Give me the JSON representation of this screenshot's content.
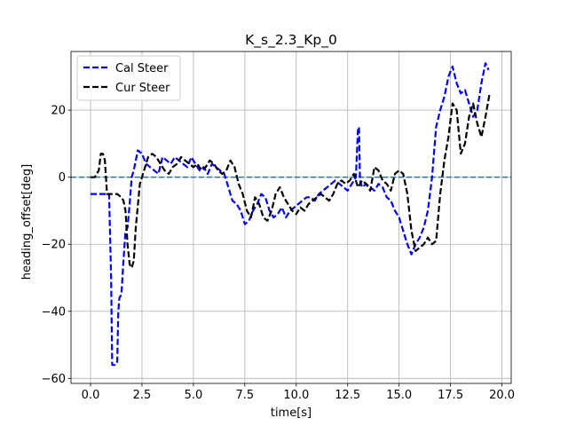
{
  "chart_data": {
    "type": "line",
    "title": "K_s_2.3_Kp_0",
    "xlabel": "time[s]",
    "ylabel": "heading_offset[deg]",
    "xlim": [
      -0.95,
      20.45
    ],
    "ylim": [
      -61.5,
      37.5
    ],
    "xticks": [
      0.0,
      2.5,
      5.0,
      7.5,
      10.0,
      12.5,
      15.0,
      17.5,
      20.0
    ],
    "xtick_labels": [
      "0.0",
      "2.5",
      "5.0",
      "7.5",
      "10.0",
      "12.5",
      "15.0",
      "17.5",
      "20.0"
    ],
    "yticks": [
      -60,
      -40,
      -20,
      0,
      20
    ],
    "ytick_labels": [
      "−60",
      "−40",
      "−20",
      "0",
      "20"
    ],
    "grid": true,
    "legend_position": "top-left",
    "reference_line": {
      "y": 0,
      "color": "#1f77b4",
      "style": "dashed"
    },
    "series": [
      {
        "name": "Cal Steer",
        "color": "#0000ff",
        "style": "dashed",
        "x": [
          0.0,
          0.5,
          0.9,
          1.0,
          1.05,
          1.1,
          1.2,
          1.3,
          1.35,
          1.4,
          1.5,
          1.6,
          1.7,
          1.8,
          1.9,
          2.0,
          2.1,
          2.3,
          2.5,
          2.7,
          2.9,
          3.1,
          3.3,
          3.5,
          3.7,
          3.9,
          4.1,
          4.3,
          4.5,
          4.7,
          4.9,
          5.1,
          5.3,
          5.5,
          5.7,
          5.9,
          6.1,
          6.3,
          6.5,
          6.7,
          6.9,
          7.1,
          7.3,
          7.5,
          7.7,
          7.9,
          8.1,
          8.3,
          8.5,
          8.7,
          8.9,
          9.1,
          9.3,
          9.5,
          9.7,
          9.9,
          10.1,
          10.3,
          10.5,
          10.7,
          10.9,
          11.1,
          11.3,
          11.5,
          11.7,
          11.9,
          12.1,
          12.3,
          12.5,
          12.7,
          12.9,
          13.0,
          13.05,
          13.1,
          13.2,
          13.4,
          13.6,
          13.8,
          14.0,
          14.2,
          14.4,
          14.6,
          14.8,
          15.0,
          15.2,
          15.4,
          15.6,
          15.8,
          16.0,
          16.2,
          16.4,
          16.6,
          16.8,
          17.0,
          17.2,
          17.4,
          17.6,
          17.8,
          18.0,
          18.2,
          18.4,
          18.6,
          18.8,
          19.0,
          19.2,
          19.35
        ],
        "y": [
          -5,
          -5,
          -5,
          -30,
          -56,
          -56,
          -56,
          -55,
          -40,
          -36,
          -35,
          -25,
          -16,
          -15,
          -8,
          0,
          2,
          8,
          7,
          4,
          3,
          2,
          1,
          6,
          5,
          4,
          6,
          5,
          4,
          3,
          6,
          4,
          2,
          3,
          1,
          4,
          3,
          2,
          1,
          -3,
          -7,
          -8,
          -10,
          -14,
          -13,
          -10,
          -8,
          -5,
          -6,
          -10,
          -12,
          -11,
          -9,
          -12,
          -10,
          -9,
          -8,
          -7,
          -6,
          -6,
          -7,
          -5,
          -4,
          -3,
          -2,
          -1,
          -2,
          -3,
          -4,
          -2,
          0,
          14,
          15,
          -1,
          -3,
          -2,
          -3,
          -4,
          -2,
          -3,
          -6,
          -7,
          -10,
          -12,
          -16,
          -20,
          -23,
          -20,
          -18,
          -15,
          -10,
          0,
          15,
          20,
          24,
          30,
          33,
          28,
          25,
          26,
          22,
          18,
          20,
          28,
          34,
          32
        ]
      },
      {
        "name": "Cur Steer",
        "color": "#000000",
        "style": "dashed",
        "x": [
          0.0,
          0.2,
          0.4,
          0.5,
          0.6,
          0.7,
          0.8,
          0.9,
          1.0,
          1.1,
          1.2,
          1.3,
          1.5,
          1.6,
          1.7,
          1.8,
          1.9,
          2.0,
          2.1,
          2.2,
          2.4,
          2.6,
          2.8,
          3.0,
          3.2,
          3.4,
          3.6,
          3.8,
          4.0,
          4.2,
          4.4,
          4.6,
          4.8,
          5.0,
          5.2,
          5.4,
          5.6,
          5.8,
          6.0,
          6.2,
          6.4,
          6.6,
          6.8,
          7.0,
          7.2,
          7.4,
          7.6,
          7.8,
          8.0,
          8.2,
          8.4,
          8.6,
          8.8,
          9.0,
          9.2,
          9.4,
          9.6,
          9.8,
          10.0,
          10.2,
          10.4,
          10.6,
          10.8,
          11.0,
          11.2,
          11.4,
          11.6,
          11.8,
          12.0,
          12.2,
          12.4,
          12.6,
          12.8,
          13.0,
          13.2,
          13.4,
          13.6,
          13.8,
          14.0,
          14.2,
          14.4,
          14.6,
          14.8,
          15.0,
          15.2,
          15.4,
          15.6,
          15.8,
          16.0,
          16.2,
          16.4,
          16.6,
          16.8,
          17.0,
          17.2,
          17.4,
          17.6,
          17.8,
          18.0,
          18.2,
          18.4,
          18.6,
          18.8,
          19.0,
          19.2,
          19.4
        ],
        "y": [
          0,
          0,
          2,
          7,
          7,
          5,
          -5,
          -5,
          -5,
          -5,
          -5,
          -5,
          -6,
          -7,
          -10,
          -20,
          -26,
          -27,
          -25,
          -15,
          -2,
          2,
          6,
          7,
          6,
          4,
          2,
          1,
          3,
          4,
          6,
          5,
          4,
          3,
          4,
          2,
          3,
          5,
          4,
          2,
          1,
          2,
          5,
          3,
          -2,
          -5,
          -10,
          -12,
          -6,
          -8,
          -12,
          -13,
          -10,
          -5,
          -3,
          -6,
          -8,
          -10,
          -11,
          -9,
          -10,
          -8,
          -7,
          -6,
          -5,
          -6,
          -7,
          -5,
          -2,
          -1,
          -2,
          -1,
          1,
          -3,
          -1,
          -2,
          -4,
          3,
          2,
          -1,
          -2,
          -4,
          1,
          2,
          1,
          -5,
          -16,
          -22,
          -21,
          -20,
          -18,
          -20,
          -19,
          -5,
          5,
          12,
          22,
          20,
          7,
          10,
          18,
          22,
          16,
          12,
          18,
          25
        ]
      }
    ]
  }
}
